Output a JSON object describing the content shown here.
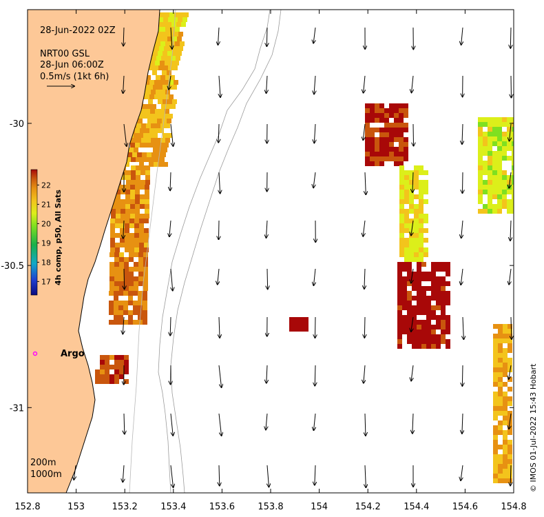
{
  "map": {
    "timestamp": "28-Jun-2022 02Z",
    "current_source": "NRT00 GSL",
    "current_time": "28-Jun 06:00Z",
    "vector_scale": "0.5m/s (1kt 6h)",
    "colorbar_title": "4h comp, p50, All Sats",
    "colorbar_ticks": [
      "17",
      "18",
      "19",
      "20",
      "21",
      "22"
    ],
    "colorbar_range": [
      16.3,
      22.8
    ],
    "x_ticks": [
      "152.8",
      "153",
      "153.2",
      "153.4",
      "153.6",
      "153.8",
      "154",
      "154.2",
      "154.4",
      "154.6",
      "154.8"
    ],
    "y_ticks": [
      "-30",
      "-30.5",
      "-31"
    ],
    "lon_range": [
      152.8,
      154.8
    ],
    "lat_range": [
      -31.3,
      -29.6
    ],
    "contour_labels": [
      "200m",
      "1000m"
    ],
    "argo_label": "Argo",
    "credit": "© IMOS 01-Jul-2022 15:43 Hobart",
    "colors": {
      "land": "#fdc897",
      "argo_marker": "#ff00ff",
      "contour": "#aaaaaa",
      "sst_scale": [
        "#0a0a80",
        "#1f3fd0",
        "#12a8c8",
        "#18b04a",
        "#7fe020",
        "#dcef1a",
        "#f3c41c",
        "#e79112",
        "#c9560d",
        "#a80808"
      ]
    }
  }
}
